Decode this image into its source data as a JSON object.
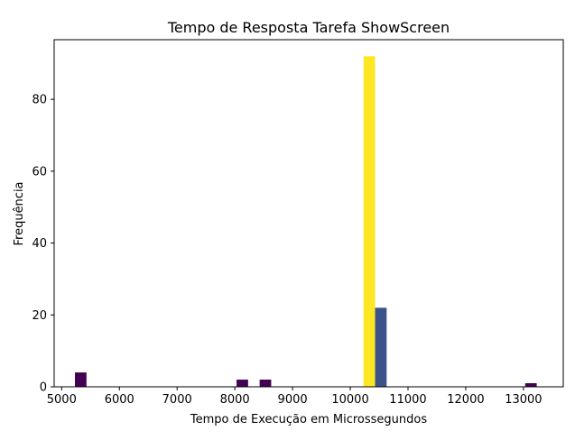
{
  "chart_data": {
    "type": "bar",
    "title": "Tempo de Resposta Tarefa ShowScreen",
    "xlabel": "Tempo de Execução em Microssegundos",
    "ylabel": "Frequência",
    "xlim": [
      4870,
      13690
    ],
    "ylim": [
      0,
      96.6
    ],
    "xticks": [
      5000,
      6000,
      7000,
      8000,
      9000,
      10000,
      11000,
      12000,
      13000
    ],
    "yticks": [
      0,
      20,
      40,
      60,
      80
    ],
    "bin_width": 200,
    "bars": [
      {
        "x_start": 5230,
        "x_end": 5430,
        "value": 4,
        "color": "#440154"
      },
      {
        "x_start": 8030,
        "x_end": 8230,
        "value": 2,
        "color": "#440154"
      },
      {
        "x_start": 8430,
        "x_end": 8630,
        "value": 2,
        "color": "#440154"
      },
      {
        "x_start": 10230,
        "x_end": 10430,
        "value": 92,
        "color": "#fde725"
      },
      {
        "x_start": 10430,
        "x_end": 10630,
        "value": 22,
        "color": "#3b528b"
      },
      {
        "x_start": 13030,
        "x_end": 13230,
        "value": 1,
        "color": "#440154"
      }
    ],
    "grid": false,
    "legend": false
  }
}
